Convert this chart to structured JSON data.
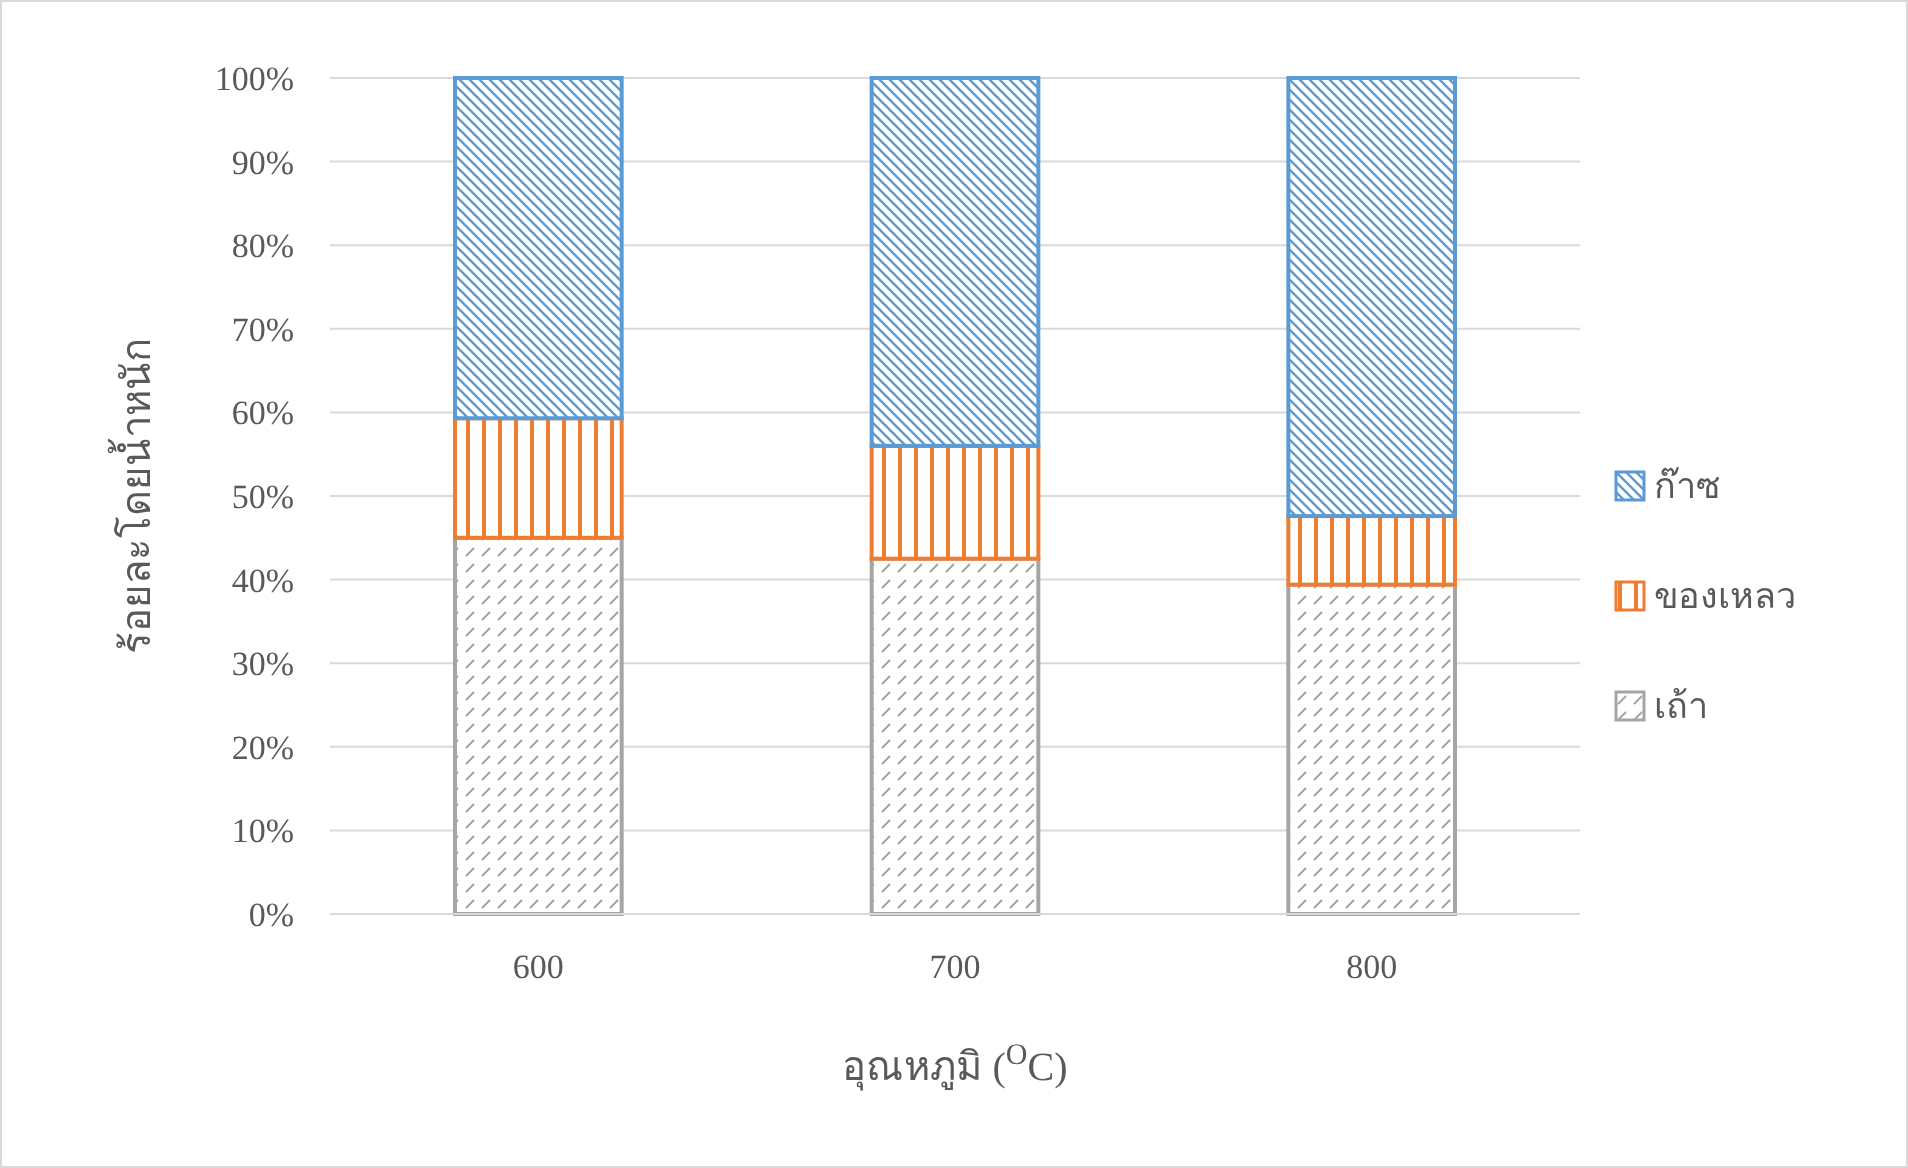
{
  "chart_data": {
    "type": "bar",
    "stacked": true,
    "categories": [
      "600",
      "700",
      "800"
    ],
    "series": [
      {
        "name": "เถ้า",
        "color": "#a5a5a5",
        "values": [
          45.0,
          42.5,
          39.4
        ]
      },
      {
        "name": "ของเหลว",
        "color": "#ed7d31",
        "values": [
          14.3,
          13.5,
          8.2
        ]
      },
      {
        "name": "ก๊าซ",
        "color": "#5b9bd5",
        "values": [
          40.7,
          44.0,
          52.4
        ]
      }
    ],
    "xlabel": "อุณหภูมิ ($^{O}$C)",
    "ylabel": "ร้อยละโดยน้ำหนัก",
    "ylim": [
      0,
      100
    ],
    "yticks": [
      {
        "value": 0,
        "label": "0%"
      },
      {
        "value": 10,
        "label": "10%"
      },
      {
        "value": 20,
        "label": "20%"
      },
      {
        "value": 30,
        "label": "30%"
      },
      {
        "value": 40,
        "label": "40%"
      },
      {
        "value": 50,
        "label": "50%"
      },
      {
        "value": 60,
        "label": "60%"
      },
      {
        "value": 70,
        "label": "70%"
      },
      {
        "value": 80,
        "label": "80%"
      },
      {
        "value": 90,
        "label": "90%"
      },
      {
        "value": 100,
        "label": "100%"
      }
    ],
    "grid": "y",
    "legend": "right"
  }
}
